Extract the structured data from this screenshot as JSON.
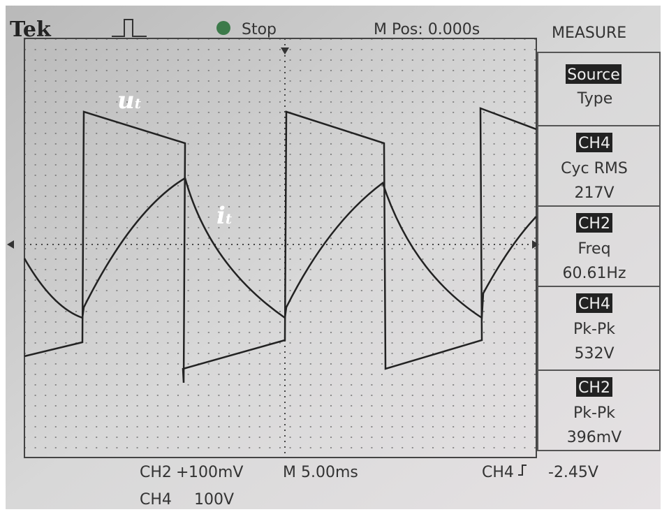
{
  "header": {
    "brand": "Tek",
    "status": "Stop",
    "position": "M Pos: 0.000s",
    "menu": "MEASURE"
  },
  "waveform_labels": [
    {
      "main": "u",
      "sub": "t"
    },
    {
      "main": "i",
      "sub": "t"
    }
  ],
  "menu": {
    "source": "Source",
    "type": "Type",
    "measurements": [
      {
        "channel": "CH4",
        "name": "Cyc RMS",
        "value": "217V"
      },
      {
        "channel": "CH2",
        "name": "Freq",
        "value": "60.61Hz"
      },
      {
        "channel": "CH4",
        "name": "Pk-Pk",
        "value": "532V"
      },
      {
        "channel": "CH2",
        "name": "Pk-Pk",
        "value": "396mV"
      }
    ]
  },
  "footer": {
    "ch2": "CH2",
    "ch2_scale": "100mV",
    "timebase": "M 5.00ms",
    "trigger_channel": "CH4",
    "trigger_level": "-2.45V",
    "ch4": "CH4",
    "ch4_scale": "100V"
  }
}
